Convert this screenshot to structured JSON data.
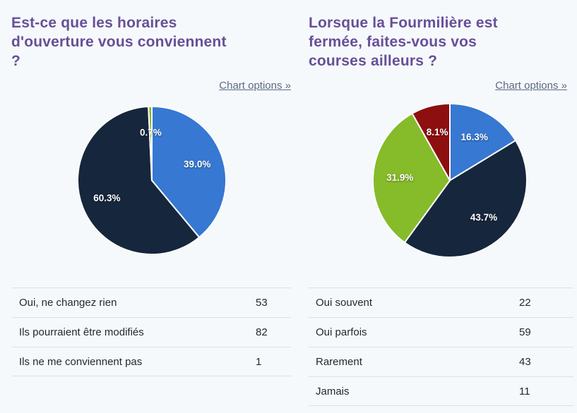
{
  "ui": {
    "chart_options_label": "Chart options »",
    "title_color": "#684f97",
    "link_color": "#5d6a80",
    "background_color": "#f5f9fc"
  },
  "chart_data": [
    {
      "type": "pie",
      "title": "Est-ce que les horaires d'ouverture vous conviennent ?",
      "title_lines": [
        "Est-ce que les horaires",
        "d'ouverture vous conviennent",
        "?"
      ],
      "categories": [
        "Oui, ne changez rien",
        "Ils pourraient être modifiés",
        "Ils ne me conviennent pas"
      ],
      "values": [
        53,
        82,
        1
      ],
      "percent_labels": [
        "39.0%",
        "60.3%",
        "0.7%"
      ],
      "colors": [
        "#3678d2",
        "#16263c",
        "#86bb2a"
      ],
      "start_angle_deg": 0,
      "direction": "clockwise",
      "legend": "none",
      "slice_label_style": "white-bold-percent"
    },
    {
      "type": "pie",
      "title": "Lorsque la Fourmilière est fermée, faites-vous vos courses ailleurs ?",
      "title_lines": [
        "Lorsque la Fourmilière est",
        "fermée, faites-vous vos",
        "courses ailleurs ?"
      ],
      "categories": [
        "Oui souvent",
        "Oui parfois",
        "Rarement",
        "Jamais"
      ],
      "values": [
        22,
        59,
        43,
        11
      ],
      "percent_labels": [
        "16.3%",
        "43.7%",
        "31.9%",
        "8.1%"
      ],
      "colors": [
        "#3678d2",
        "#16263c",
        "#86bb2a",
        "#8e0f10"
      ],
      "start_angle_deg": 0,
      "direction": "clockwise",
      "legend": "none",
      "slice_label_style": "white-bold-percent"
    }
  ]
}
